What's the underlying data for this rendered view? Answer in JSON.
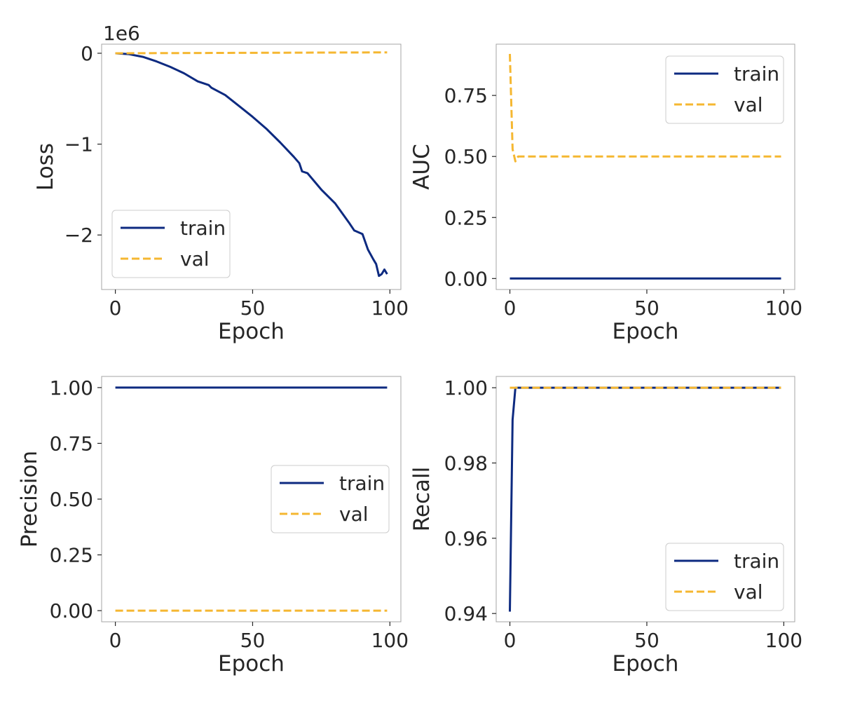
{
  "chart_data": [
    {
      "type": "line",
      "xlabel": "Epoch",
      "ylabel": "Loss",
      "offset_text": "1e6",
      "xlim": [
        -5,
        104
      ],
      "ylim": [
        -2.6,
        0.1
      ],
      "xticks": [
        0,
        50,
        100
      ],
      "xtick_labels": [
        "0",
        "50",
        "100"
      ],
      "yticks": [
        0,
        -1,
        -2
      ],
      "ytick_labels": [
        "0",
        "−1",
        "−2"
      ],
      "grid": false,
      "legend_position": "lower-left",
      "series": [
        {
          "name": "train",
          "color": "#0d2a80",
          "style": "solid",
          "x": [
            0,
            5,
            10,
            15,
            20,
            25,
            30,
            34,
            35,
            40,
            45,
            50,
            55,
            60,
            65,
            67,
            68,
            70,
            75,
            80,
            85,
            87,
            90,
            92,
            94,
            95,
            96,
            97,
            98,
            99
          ],
          "y": [
            0,
            -0.01,
            -0.04,
            -0.09,
            -0.15,
            -0.22,
            -0.31,
            -0.35,
            -0.38,
            -0.46,
            -0.58,
            -0.7,
            -0.83,
            -0.98,
            -1.14,
            -1.21,
            -1.3,
            -1.32,
            -1.5,
            -1.65,
            -1.86,
            -1.95,
            -1.99,
            -2.16,
            -2.27,
            -2.32,
            -2.45,
            -2.43,
            -2.38,
            -2.43
          ]
        },
        {
          "name": "val",
          "color": "#f5b731",
          "style": "dashed",
          "x": [
            0,
            99
          ],
          "y": [
            0.0,
            0.01
          ]
        }
      ]
    },
    {
      "type": "line",
      "xlabel": "Epoch",
      "ylabel": "AUC",
      "xlim": [
        -5,
        104
      ],
      "ylim": [
        -0.045,
        0.96
      ],
      "xticks": [
        0,
        50,
        100
      ],
      "xtick_labels": [
        "0",
        "50",
        "100"
      ],
      "yticks": [
        0,
        0.25,
        0.5,
        0.75
      ],
      "ytick_labels": [
        "0.00",
        "0.25",
        "0.50",
        "0.75"
      ],
      "grid": false,
      "legend_position": "upper-right",
      "series": [
        {
          "name": "train",
          "color": "#0d2a80",
          "style": "solid",
          "x": [
            0,
            99
          ],
          "y": [
            0,
            0
          ]
        },
        {
          "name": "val",
          "color": "#f5b731",
          "style": "dashed",
          "x": [
            0,
            1,
            2,
            3,
            99
          ],
          "y": [
            0.92,
            0.53,
            0.48,
            0.5,
            0.5
          ]
        }
      ]
    },
    {
      "type": "line",
      "xlabel": "Epoch",
      "ylabel": "Precision",
      "xlim": [
        -5,
        104
      ],
      "ylim": [
        -0.05,
        1.05
      ],
      "xticks": [
        0,
        50,
        100
      ],
      "xtick_labels": [
        "0",
        "50",
        "100"
      ],
      "yticks": [
        0,
        0.25,
        0.5,
        0.75,
        1.0
      ],
      "ytick_labels": [
        "0.00",
        "0.25",
        "0.50",
        "0.75",
        "1.00"
      ],
      "grid": false,
      "legend_position": "center-right",
      "series": [
        {
          "name": "train",
          "color": "#0d2a80",
          "style": "solid",
          "x": [
            0,
            99
          ],
          "y": [
            1.0,
            1.0
          ]
        },
        {
          "name": "val",
          "color": "#f5b731",
          "style": "dashed",
          "x": [
            0,
            99
          ],
          "y": [
            0,
            0
          ]
        }
      ]
    },
    {
      "type": "line",
      "xlabel": "Epoch",
      "ylabel": "Recall",
      "xlim": [
        -5,
        104
      ],
      "ylim": [
        0.9378,
        1.003
      ],
      "xticks": [
        0,
        50,
        100
      ],
      "xtick_labels": [
        "0",
        "50",
        "100"
      ],
      "yticks": [
        0.94,
        0.96,
        0.98,
        1.0
      ],
      "ytick_labels": [
        "0.94",
        "0.96",
        "0.98",
        "1.00"
      ],
      "grid": false,
      "legend_position": "lower-right",
      "series": [
        {
          "name": "train",
          "color": "#0d2a80",
          "style": "solid",
          "x": [
            0,
            1,
            2,
            99
          ],
          "y": [
            0.9405,
            0.9915,
            1.0,
            1.0
          ]
        },
        {
          "name": "val",
          "color": "#f5b731",
          "style": "dashed",
          "x": [
            0,
            99
          ],
          "y": [
            1.0,
            1.0
          ]
        }
      ]
    }
  ]
}
